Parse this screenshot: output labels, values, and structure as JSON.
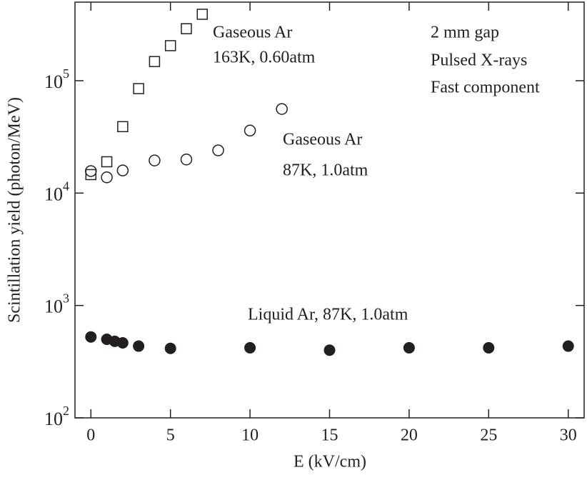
{
  "chart_data": {
    "type": "scatter",
    "xlabel": "E (kV/cm)",
    "ylabel": "Scintillation yield (photon/MeV)",
    "ylog": true,
    "xlim": [
      -1,
      31
    ],
    "ylim": [
      100,
      500000
    ],
    "xticks": [
      0,
      5,
      10,
      15,
      20,
      25,
      30
    ],
    "yticks": [
      {
        "value": 100,
        "label": "10",
        "sup": "2"
      },
      {
        "value": 1000,
        "label": "10",
        "sup": "3"
      },
      {
        "value": 10000,
        "label": "10",
        "sup": "4"
      },
      {
        "value": 100000,
        "label": "10",
        "sup": "5"
      }
    ],
    "series": [
      {
        "marker": "square",
        "color": "#231f20",
        "x": [
          0,
          1,
          2,
          3,
          4,
          5,
          6,
          7
        ],
        "values": [
          14600,
          19000,
          39000,
          85000,
          148000,
          205000,
          290000,
          390000
        ]
      },
      {
        "marker": "circle",
        "color": "#231f20",
        "x": [
          0,
          1,
          2,
          4,
          6,
          8,
          10,
          12
        ],
        "values": [
          15700,
          13800,
          15900,
          19500,
          19900,
          24000,
          36000,
          56000
        ]
      },
      {
        "marker": "filled-circle",
        "color": "#231f20",
        "x": [
          0,
          1,
          1.5,
          2,
          3,
          5,
          10,
          15,
          20,
          25,
          30
        ],
        "values": [
          525,
          500,
          480,
          465,
          435,
          415,
          420,
          400,
          420,
          420,
          435
        ]
      }
    ],
    "annotations": [
      "Gaseous Ar",
      "163K, 0.60atm",
      "Gaseous Ar",
      "87K, 1.0atm",
      "Liquid Ar, 87K, 1.0atm",
      "2 mm gap",
      "Pulsed X-rays",
      "Fast component"
    ]
  }
}
